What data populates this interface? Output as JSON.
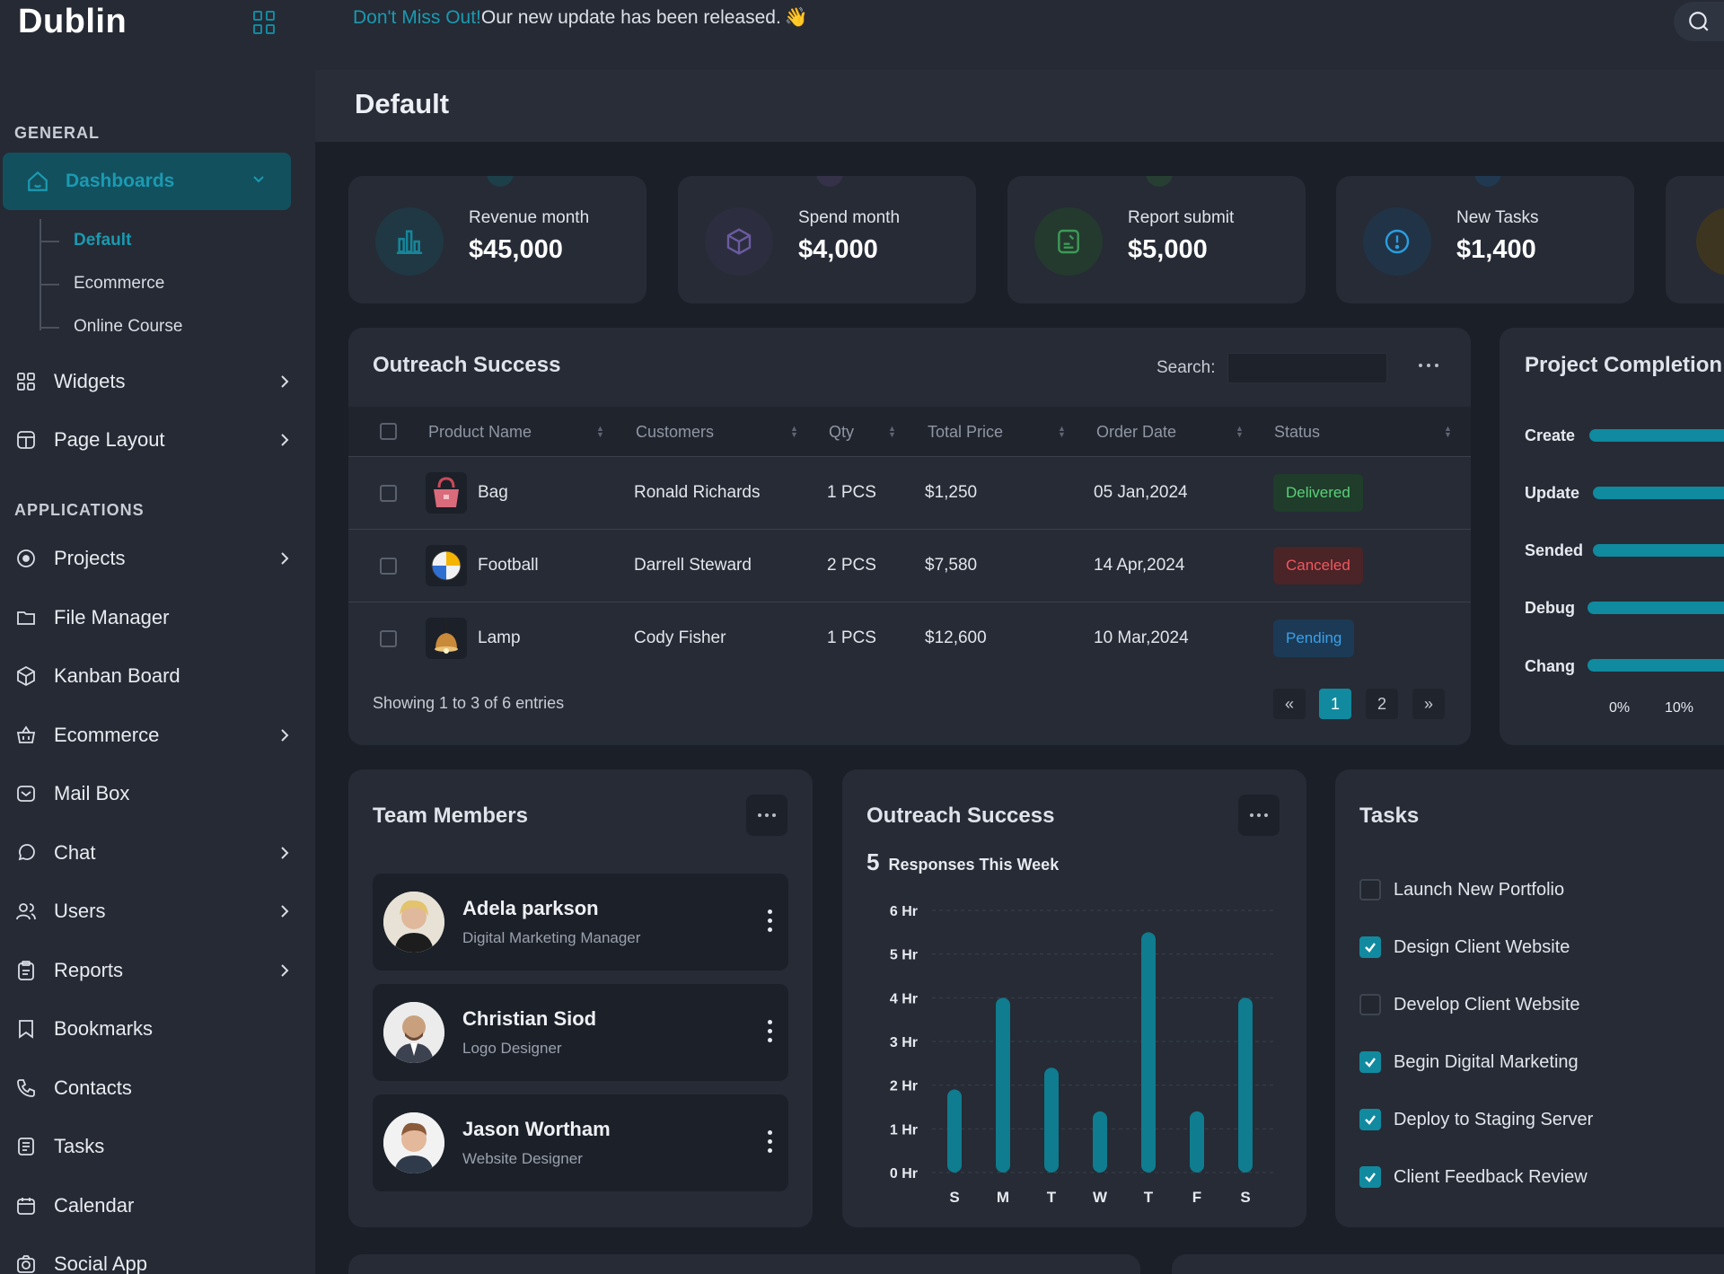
{
  "brand": {
    "name": "Dublin"
  },
  "topbar": {
    "highlight": "Don't Miss Out!",
    "message": "Our new update has been released.",
    "wave_emoji": "👋"
  },
  "sidebar": {
    "general_label": "GENERAL",
    "applications_label": "APPLICATIONS",
    "dashboards": "Dashboards",
    "dashboard_children": [
      "Default",
      "Ecommerce",
      "Online Course"
    ],
    "items": [
      {
        "label": "Widgets",
        "icon": "widgets-icon",
        "chevron": true
      },
      {
        "label": "Page Layout",
        "icon": "layout-icon",
        "chevron": true
      },
      {
        "label": "Projects",
        "icon": "target-icon",
        "chevron": true
      },
      {
        "label": "File Manager",
        "icon": "folder-icon",
        "chevron": false
      },
      {
        "label": "Kanban Board",
        "icon": "cube-icon",
        "chevron": false
      },
      {
        "label": "Ecommerce",
        "icon": "basket-icon",
        "chevron": true
      },
      {
        "label": "Mail Box",
        "icon": "mail-icon",
        "chevron": false
      },
      {
        "label": "Chat",
        "icon": "chat-icon",
        "chevron": true
      },
      {
        "label": "Users",
        "icon": "users-icon",
        "chevron": true
      },
      {
        "label": "Reports",
        "icon": "clipboard-icon",
        "chevron": true
      },
      {
        "label": "Bookmarks",
        "icon": "bookmark-icon",
        "chevron": false
      },
      {
        "label": "Contacts",
        "icon": "phone-icon",
        "chevron": false
      },
      {
        "label": "Tasks",
        "icon": "list-icon",
        "chevron": false
      },
      {
        "label": "Calendar",
        "icon": "calendar-icon",
        "chevron": false
      },
      {
        "label": "Social App",
        "icon": "camera-icon",
        "chevron": false
      }
    ]
  },
  "page": {
    "title": "Default"
  },
  "stats": [
    {
      "label": "Revenue month",
      "value": "$45,000",
      "icon": "bar-chart-icon",
      "color": "#16859a"
    },
    {
      "label": "Spend month",
      "value": "$4,000",
      "icon": "box-icon",
      "color": "#6b5aa0"
    },
    {
      "label": "Report submit",
      "value": "$5,000",
      "icon": "report-icon",
      "color": "#3d9a55"
    },
    {
      "label": "New Tasks",
      "value": "$1,400",
      "icon": "info-icon",
      "color": "#2a7fb5"
    }
  ],
  "outreach": {
    "title": "Outreach Success",
    "search_label": "Search:",
    "columns": [
      "Product Name",
      "Customers",
      "Qty",
      "Total Price",
      "Order Date",
      "Status"
    ],
    "rows": [
      {
        "product": "Bag",
        "customer": "Ronald Richards",
        "qty": "1 PCS",
        "price": "$1,250",
        "date": "05 Jan,2024",
        "status": "Delivered",
        "img": "bag-icon"
      },
      {
        "product": "Football",
        "customer": "Darrell Steward",
        "qty": "2 PCS",
        "price": "$7,580",
        "date": "14 Apr,2024",
        "status": "Canceled",
        "img": "football-icon"
      },
      {
        "product": "Lamp",
        "customer": "Cody Fisher",
        "qty": "1 PCS",
        "price": "$12,600",
        "date": "10 Mar,2024",
        "status": "Pending",
        "img": "lamp-icon"
      }
    ],
    "showing": "Showing 1 to 3 of 6 entries",
    "pagination": [
      "«",
      "1",
      "2",
      "»"
    ],
    "status_colors": {
      "Delivered": {
        "bg": "#1f3d2a",
        "fg": "#5bd07a"
      },
      "Canceled": {
        "bg": "#4a2427",
        "fg": "#f0575f"
      },
      "Pending": {
        "bg": "#1c3a55",
        "fg": "#3aa0ea"
      }
    }
  },
  "project": {
    "title": "Project Completion",
    "rows": [
      "Create",
      "Update",
      "Sended",
      "Debug",
      "Chang"
    ],
    "ticks": [
      "0%",
      "10%"
    ]
  },
  "team": {
    "title": "Team Members",
    "members": [
      {
        "name": "Adela parkson",
        "role": "Digital Marketing Manager"
      },
      {
        "name": "Christian Siod",
        "role": "Logo Designer"
      },
      {
        "name": "Jason Wortham",
        "role": "Website Designer"
      }
    ]
  },
  "chart_card": {
    "title": "Outreach Success",
    "count": "5",
    "subtitle": "Responses This Week"
  },
  "chart_data": {
    "type": "bar",
    "categories": [
      "S",
      "M",
      "T",
      "W",
      "T",
      "F",
      "S"
    ],
    "values": [
      1.9,
      4.0,
      2.4,
      1.4,
      5.5,
      1.4,
      4.0
    ],
    "y_ticks": [
      "0 Hr",
      "1 Hr",
      "2 Hr",
      "3 Hr",
      "4 Hr",
      "5 Hr",
      "6 Hr"
    ],
    "ylim": [
      0,
      6
    ],
    "grid": true,
    "bar_color": "#0f7c8f"
  },
  "tasks": {
    "title": "Tasks",
    "items": [
      {
        "label": "Launch New Portfolio",
        "checked": false
      },
      {
        "label": "Design Client Website",
        "checked": true
      },
      {
        "label": "Develop Client Website",
        "checked": false
      },
      {
        "label": "Begin Digital Marketing",
        "checked": true
      },
      {
        "label": "Deploy to Staging Server",
        "checked": true
      },
      {
        "label": "Client Feedback Review",
        "checked": true
      }
    ]
  }
}
